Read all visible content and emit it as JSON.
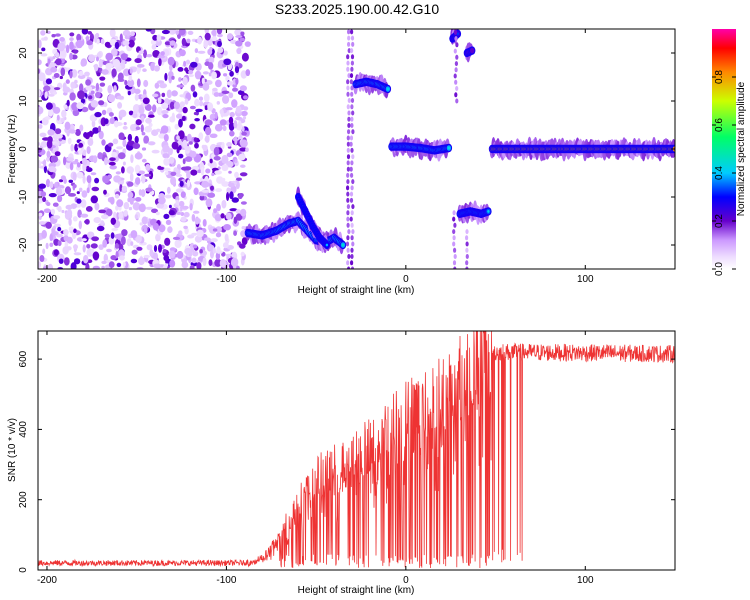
{
  "title": "S233.2025.190.00.42.G10",
  "colors": {
    "snr_line": "#ee3333",
    "spectrogram_palette": [
      "#ffffff",
      "#eeddff",
      "#cc99ff",
      "#8833ee",
      "#6600cc",
      "#0000ff",
      "#00ccff",
      "#00ff66",
      "#ccff00",
      "#ff8800",
      "#ff0000",
      "#ff00aa"
    ]
  },
  "chart_data": [
    {
      "type": "heatmap",
      "name": "spectrogram",
      "xlabel": "Height of straight line (km)",
      "ylabel": "Frequency (Hz)",
      "xlim": [
        -205,
        150
      ],
      "ylim": [
        -25,
        25
      ],
      "x_ticks": [
        -200,
        -100,
        0,
        100
      ],
      "y_ticks": [
        -20,
        -10,
        0,
        10,
        20
      ],
      "colorbar": {
        "label": "Normalized spectral amplitude",
        "range": [
          0,
          1
        ],
        "ticks": [
          0,
          0.2,
          0.4,
          0.6,
          0.8
        ]
      },
      "features": [
        {
          "description": "noise region",
          "x_range": [
            -205,
            -88
          ],
          "freq_range": [
            -25,
            25
          ],
          "amplitude": 0.15
        },
        {
          "description": "curved track",
          "points": [
            [
              -88,
              -17.5
            ],
            [
              -80,
              -18
            ],
            [
              -72,
              -17
            ],
            [
              -65,
              -15.5
            ],
            [
              -60,
              -15
            ],
            [
              -55,
              -17
            ],
            [
              -50,
              -19
            ],
            [
              -45,
              -19.5
            ],
            [
              -40,
              -18.5
            ],
            [
              -35,
              -20
            ]
          ],
          "amplitude": 0.45
        },
        {
          "description": "rising arm",
          "points": [
            [
              -60,
              -10
            ],
            [
              -56,
              -13
            ],
            [
              -52,
              -16
            ],
            [
              -48,
              -18.5
            ],
            [
              -44,
              -20
            ]
          ],
          "amplitude": 0.35
        },
        {
          "description": "track near +13 Hz",
          "points": [
            [
              -28,
              13.5
            ],
            [
              -22,
              14
            ],
            [
              -16,
              13.5
            ],
            [
              -10,
              12.5
            ]
          ],
          "amplitude": 0.45
        },
        {
          "description": "track near 0 Hz",
          "points": [
            [
              -8,
              0.5
            ],
            [
              0,
              0.5
            ],
            [
              8,
              0.2
            ],
            [
              16,
              -0.3
            ],
            [
              24,
              0.2
            ]
          ],
          "amplitude": 0.45
        },
        {
          "description": "short segment near +23 Hz",
          "points": [
            [
              26,
              23
            ],
            [
              29,
              24
            ]
          ],
          "amplitude": 0.3
        },
        {
          "description": "short segment near +20 Hz",
          "points": [
            [
              34,
              20
            ],
            [
              37,
              20.5
            ]
          ],
          "amplitude": 0.25
        },
        {
          "description": "track near -13.5 Hz",
          "points": [
            [
              30,
              -13.5
            ],
            [
              36,
              -13
            ],
            [
              42,
              -13.5
            ],
            [
              46,
              -13
            ]
          ],
          "amplitude": 0.4
        },
        {
          "description": "steady tone at 0 Hz",
          "points": [
            [
              48,
              0
            ],
            [
              150,
              0
            ]
          ],
          "amplitude": 0.95
        }
      ]
    },
    {
      "type": "line",
      "name": "snr",
      "xlabel": "Height of straight line (km)",
      "ylabel": "SNR (10 * v/v)",
      "xlim": [
        -205,
        150
      ],
      "ylim": [
        0,
        680
      ],
      "x_ticks": [
        -200,
        -100,
        0,
        100
      ],
      "y_ticks": [
        0,
        200,
        400,
        600
      ],
      "profile": [
        [
          -205,
          20
        ],
        [
          -90,
          20
        ],
        [
          -80,
          35
        ],
        [
          -72,
          80
        ],
        [
          -65,
          150
        ],
        [
          -55,
          230
        ],
        [
          -45,
          280
        ],
        [
          -35,
          300
        ],
        [
          -25,
          330
        ],
        [
          -15,
          380
        ],
        [
          -5,
          420
        ],
        [
          5,
          450
        ],
        [
          15,
          480
        ],
        [
          25,
          520
        ],
        [
          35,
          580
        ],
        [
          45,
          620
        ],
        [
          55,
          620
        ],
        [
          150,
          615
        ]
      ]
    }
  ]
}
